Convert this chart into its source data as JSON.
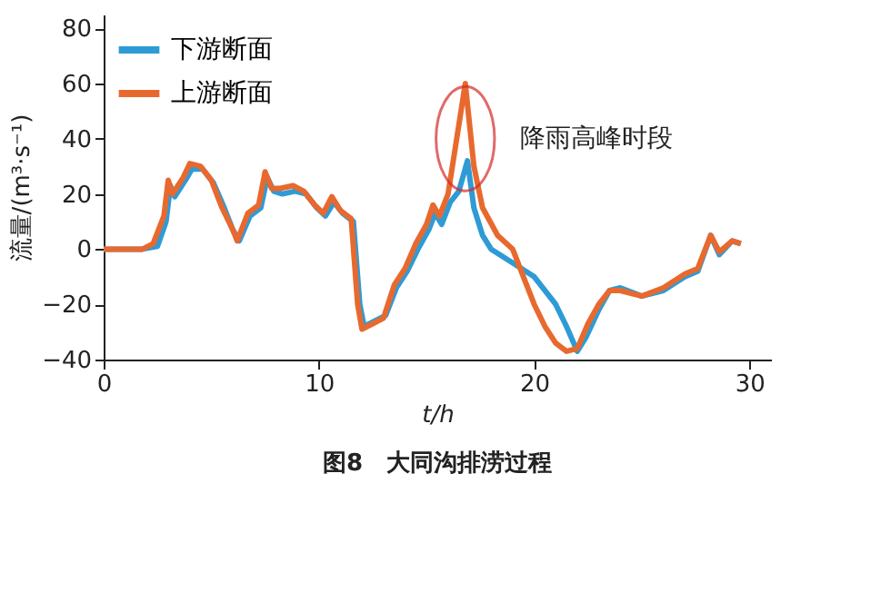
{
  "chart_data": {
    "type": "line",
    "title": "图8　大同沟排涝过程",
    "xlabel": "t/h",
    "ylabel": "流量/(m³·s⁻¹)",
    "xlim": [
      0,
      31
    ],
    "xticks": [
      0,
      10,
      20,
      30
    ],
    "ylim": [
      -40,
      85
    ],
    "yticks": [
      -40,
      -20,
      0,
      20,
      40,
      60,
      80
    ],
    "grid": false,
    "legend": "top left",
    "line_style": "solid",
    "marker": "none",
    "annotations": [
      {
        "text": "降雨高峰时段",
        "x": 16.8,
        "y": 40
      }
    ],
    "series": [
      {
        "name": "下游断面",
        "color": "#2e9bd6",
        "x": [
          0,
          1.8,
          2.5,
          2.9,
          3.1,
          3.3,
          3.8,
          4.1,
          4.6,
          5.1,
          5.6,
          6.0,
          6.3,
          6.8,
          7.3,
          7.6,
          7.9,
          8.3,
          8.9,
          9.4,
          9.9,
          10.3,
          10.7,
          11.1,
          11.6,
          11.9,
          12.1,
          12.6,
          13.1,
          13.6,
          14.1,
          14.6,
          15.1,
          15.4,
          15.7,
          16.1,
          16.5,
          16.9,
          17.2,
          17.6,
          18.0,
          19.0,
          20.0,
          21.0,
          21.5,
          22.0,
          22.4,
          23.0,
          23.5,
          24.0,
          25.0,
          26.0,
          27.0,
          27.6,
          28.2,
          28.6,
          29.2,
          29.6
        ],
        "values": [
          0,
          0,
          1,
          10,
          23,
          19,
          25,
          29,
          29,
          24,
          15,
          7,
          3,
          12,
          15,
          26,
          21,
          20,
          21,
          20,
          15,
          12,
          17,
          13,
          10,
          -20,
          -28,
          -26,
          -24,
          -14,
          -8,
          0,
          7,
          13,
          9,
          17,
          21,
          32,
          15,
          5,
          0,
          -5,
          -10,
          -20,
          -28,
          -37,
          -32,
          -22,
          -15,
          -14,
          -17,
          -15,
          -10,
          -8,
          5,
          -2,
          3,
          2
        ]
      },
      {
        "name": "上游断面",
        "color": "#e8692e",
        "x": [
          0,
          1.8,
          2.3,
          2.8,
          3.0,
          3.2,
          3.7,
          4.0,
          4.5,
          5.0,
          5.5,
          6.0,
          6.2,
          6.7,
          7.2,
          7.5,
          7.8,
          8.2,
          8.8,
          9.3,
          9.8,
          10.2,
          10.6,
          11.0,
          11.5,
          11.8,
          12.0,
          12.5,
          13.0,
          13.5,
          14.0,
          14.5,
          15.0,
          15.3,
          15.6,
          16.0,
          16.5,
          16.8,
          17.2,
          17.6,
          18.3,
          19.0,
          19.5,
          20.0,
          20.5,
          21.0,
          21.5,
          22.0,
          22.5,
          23.0,
          23.5,
          24.0,
          25.0,
          26.0,
          27.0,
          27.6,
          28.2,
          28.6,
          29.2,
          29.6
        ],
        "values": [
          0,
          0,
          2,
          12,
          25,
          20,
          26,
          31,
          30,
          25,
          15,
          7,
          3,
          13,
          16,
          28,
          22,
          22,
          23,
          21,
          16,
          13,
          19,
          14,
          11,
          -20,
          -29,
          -27,
          -25,
          -13,
          -7,
          2,
          9,
          16,
          12,
          20,
          45,
          60,
          30,
          15,
          5,
          0,
          -10,
          -20,
          -28,
          -34,
          -37,
          -36,
          -27,
          -20,
          -15,
          -15,
          -17,
          -14,
          -9,
          -7,
          5,
          -1,
          3,
          2
        ]
      }
    ]
  }
}
